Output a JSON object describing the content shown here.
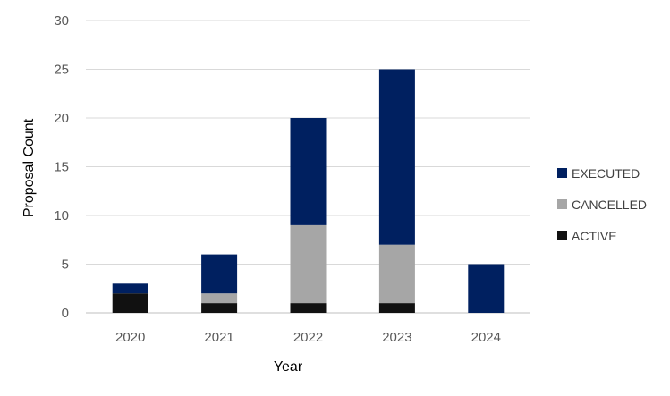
{
  "chart_data": {
    "type": "bar",
    "stacked": true,
    "categories": [
      "2020",
      "2021",
      "2022",
      "2023",
      "2024"
    ],
    "series": [
      {
        "name": "ACTIVE",
        "color": "#111111",
        "values": [
          2,
          1,
          1,
          1,
          0
        ]
      },
      {
        "name": "CANCELLED",
        "color": "#a6a6a6",
        "values": [
          0,
          1,
          8,
          6,
          0
        ]
      },
      {
        "name": "EXECUTED",
        "color": "#002060",
        "values": [
          1,
          4,
          11,
          18,
          5
        ]
      }
    ],
    "legend_order": [
      "EXECUTED",
      "CANCELLED",
      "ACTIVE"
    ],
    "xlabel": "Year",
    "ylabel": "Proposal Count",
    "ylim": [
      0,
      30
    ],
    "yticks": [
      "0",
      "5",
      "10",
      "15",
      "20",
      "25",
      "30"
    ],
    "grid": true,
    "legend_position": "right"
  }
}
